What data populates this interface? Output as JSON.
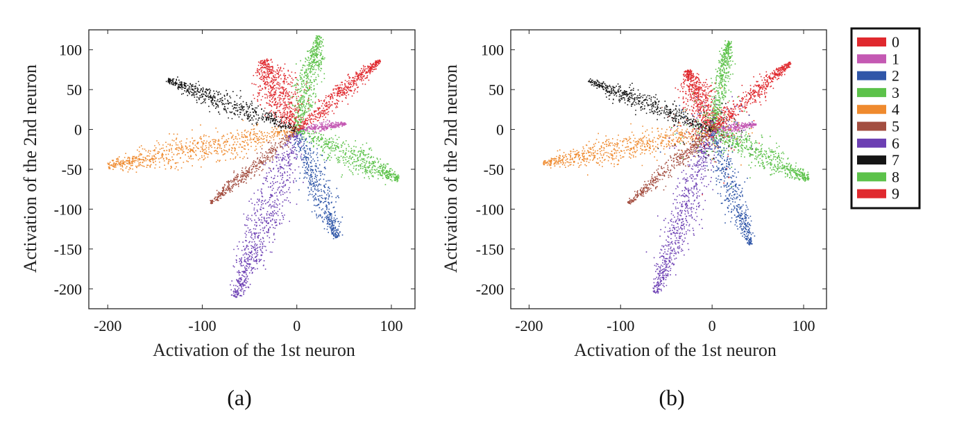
{
  "colors": {
    "0": "#e0292e",
    "1": "#c459b3",
    "2": "#2f56a8",
    "3": "#5cc24a",
    "4": "#ef8a2e",
    "5": "#a34e40",
    "6": "#6c3fb3",
    "7": "#151515",
    "8": "#5cc24a",
    "9": "#e0292e"
  },
  "chart_data": [
    {
      "type": "scatter",
      "caption": "(a)",
      "xlabel": "Activation of the 1st neuron",
      "ylabel": "Activation of the 2nd neuron",
      "xlim": [
        -220,
        125
      ],
      "ylim": [
        -225,
        125
      ],
      "xticks": [
        -200,
        -100,
        0,
        100
      ],
      "yticks": [
        -200,
        -150,
        -100,
        -50,
        0,
        50,
        100
      ],
      "grid": false,
      "series": [
        {
          "name": "0",
          "tip": [
            -35,
            85
          ],
          "length": 95,
          "width": 14,
          "n": 650,
          "noise": 0
        },
        {
          "name": "1",
          "tip": [
            52,
            8
          ],
          "length": 52,
          "width": 3,
          "n": 250,
          "noise": 0
        },
        {
          "name": "2",
          "tip": [
            42,
            -135
          ],
          "length": 142,
          "width": 9,
          "n": 500,
          "noise": 0
        },
        {
          "name": "3",
          "tip": [
            23,
            118
          ],
          "length": 120,
          "width": 7,
          "n": 500,
          "noise": 0
        },
        {
          "name": "4",
          "tip": [
            -200,
            -45
          ],
          "length": 205,
          "width": 11,
          "n": 750,
          "noise": 0
        },
        {
          "name": "5",
          "tip": [
            -92,
            -92
          ],
          "length": 130,
          "width": 5,
          "n": 400,
          "noise": 0
        },
        {
          "name": "6",
          "tip": [
            -65,
            -210
          ],
          "length": 220,
          "width": 12,
          "n": 750,
          "noise": 0
        },
        {
          "name": "7",
          "tip": [
            -138,
            63
          ],
          "length": 152,
          "width": 8,
          "n": 550,
          "noise": 0
        },
        {
          "name": "8",
          "tip": [
            108,
            -62
          ],
          "length": 124,
          "width": 10,
          "n": 550,
          "noise": 0
        },
        {
          "name": "9",
          "tip": [
            88,
            88
          ],
          "length": 124,
          "width": 6,
          "n": 500,
          "noise": 0
        }
      ]
    },
    {
      "type": "scatter",
      "caption": "(b)",
      "xlabel": "Activation of the 1st neuron",
      "ylabel": "Activation of the 2nd neuron",
      "xlim": [
        -220,
        125
      ],
      "ylim": [
        -225,
        125
      ],
      "xticks": [
        -200,
        -100,
        0,
        100
      ],
      "yticks": [
        -200,
        -150,
        -100,
        -50,
        0,
        50,
        100
      ],
      "grid": false,
      "series": [
        {
          "name": "0",
          "tip": [
            -28,
            75
          ],
          "length": 80,
          "width": 11,
          "n": 550,
          "noise": 60
        },
        {
          "name": "1",
          "tip": [
            48,
            7
          ],
          "length": 48,
          "width": 3,
          "n": 220,
          "noise": 40
        },
        {
          "name": "2",
          "tip": [
            42,
            -145
          ],
          "length": 150,
          "width": 8,
          "n": 450,
          "noise": 60
        },
        {
          "name": "3",
          "tip": [
            18,
            112
          ],
          "length": 113,
          "width": 6,
          "n": 450,
          "noise": 60
        },
        {
          "name": "4",
          "tip": [
            -185,
            -42
          ],
          "length": 190,
          "width": 10,
          "n": 650,
          "noise": 70
        },
        {
          "name": "5",
          "tip": [
            -92,
            -92
          ],
          "length": 130,
          "width": 5,
          "n": 380,
          "noise": 50
        },
        {
          "name": "6",
          "tip": [
            -62,
            -205
          ],
          "length": 214,
          "width": 10,
          "n": 650,
          "noise": 70
        },
        {
          "name": "7",
          "tip": [
            -135,
            62
          ],
          "length": 149,
          "width": 7,
          "n": 500,
          "noise": 60
        },
        {
          "name": "8",
          "tip": [
            105,
            -62
          ],
          "length": 122,
          "width": 9,
          "n": 500,
          "noise": 60
        },
        {
          "name": "9",
          "tip": [
            85,
            85
          ],
          "length": 120,
          "width": 6,
          "n": 450,
          "noise": 60
        }
      ]
    }
  ],
  "legend": {
    "position": "right",
    "items": [
      "0",
      "1",
      "2",
      "3",
      "4",
      "5",
      "6",
      "7",
      "8",
      "9"
    ]
  }
}
